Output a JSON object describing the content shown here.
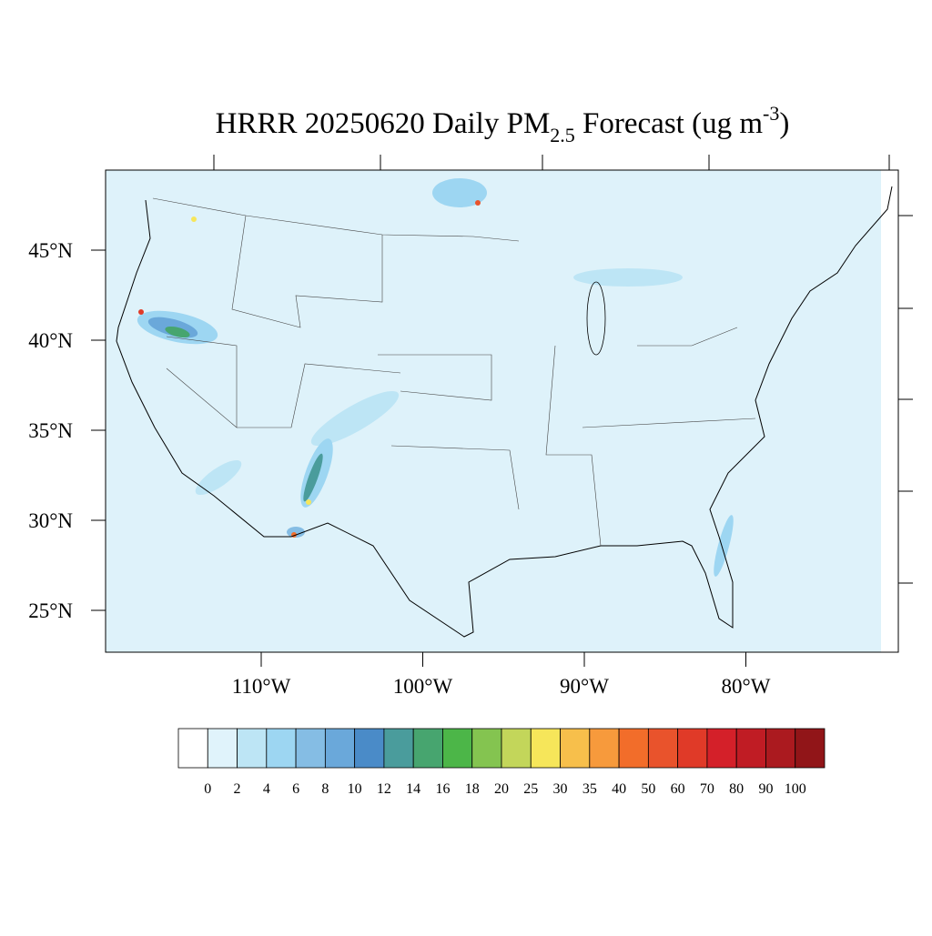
{
  "map": {
    "title": {
      "main": "HRRR 20250620 Daily PM",
      "subscript": "2.5",
      "middle": " Forecast (ug m",
      "superscript": "-3",
      "end": ")"
    },
    "latitude_ticks": [
      {
        "value": 45,
        "label": "45°N"
      },
      {
        "value": 40,
        "label": "40°N"
      },
      {
        "value": 35,
        "label": "35°N"
      },
      {
        "value": 30,
        "label": "30°N"
      },
      {
        "value": 25,
        "label": "25°N"
      }
    ],
    "longitude_ticks": [
      {
        "value": -110,
        "label": "110°W"
      },
      {
        "value": -100,
        "label": "100°W"
      },
      {
        "value": -90,
        "label": "90°W"
      },
      {
        "value": -80,
        "label": "80°W"
      }
    ],
    "colorbar": {
      "levels": [
        0,
        2,
        4,
        6,
        8,
        10,
        12,
        14,
        16,
        18,
        20,
        25,
        30,
        35,
        40,
        50,
        60,
        70,
        80,
        90,
        100
      ],
      "colors": [
        "#ffffff",
        "#e0f3fb",
        "#bde5f5",
        "#9dd6f2",
        "#85bde4",
        "#6aa8da",
        "#4a8bc8",
        "#4a9c9c",
        "#47a56f",
        "#4cb648",
        "#84c450",
        "#c3d65a",
        "#f6e65a",
        "#f7bf4b",
        "#f79a3c",
        "#f26d2a",
        "#e9532c",
        "#e03a28",
        "#d42029",
        "#c01c24",
        "#ab1a1f",
        "#911518"
      ]
    }
  }
}
